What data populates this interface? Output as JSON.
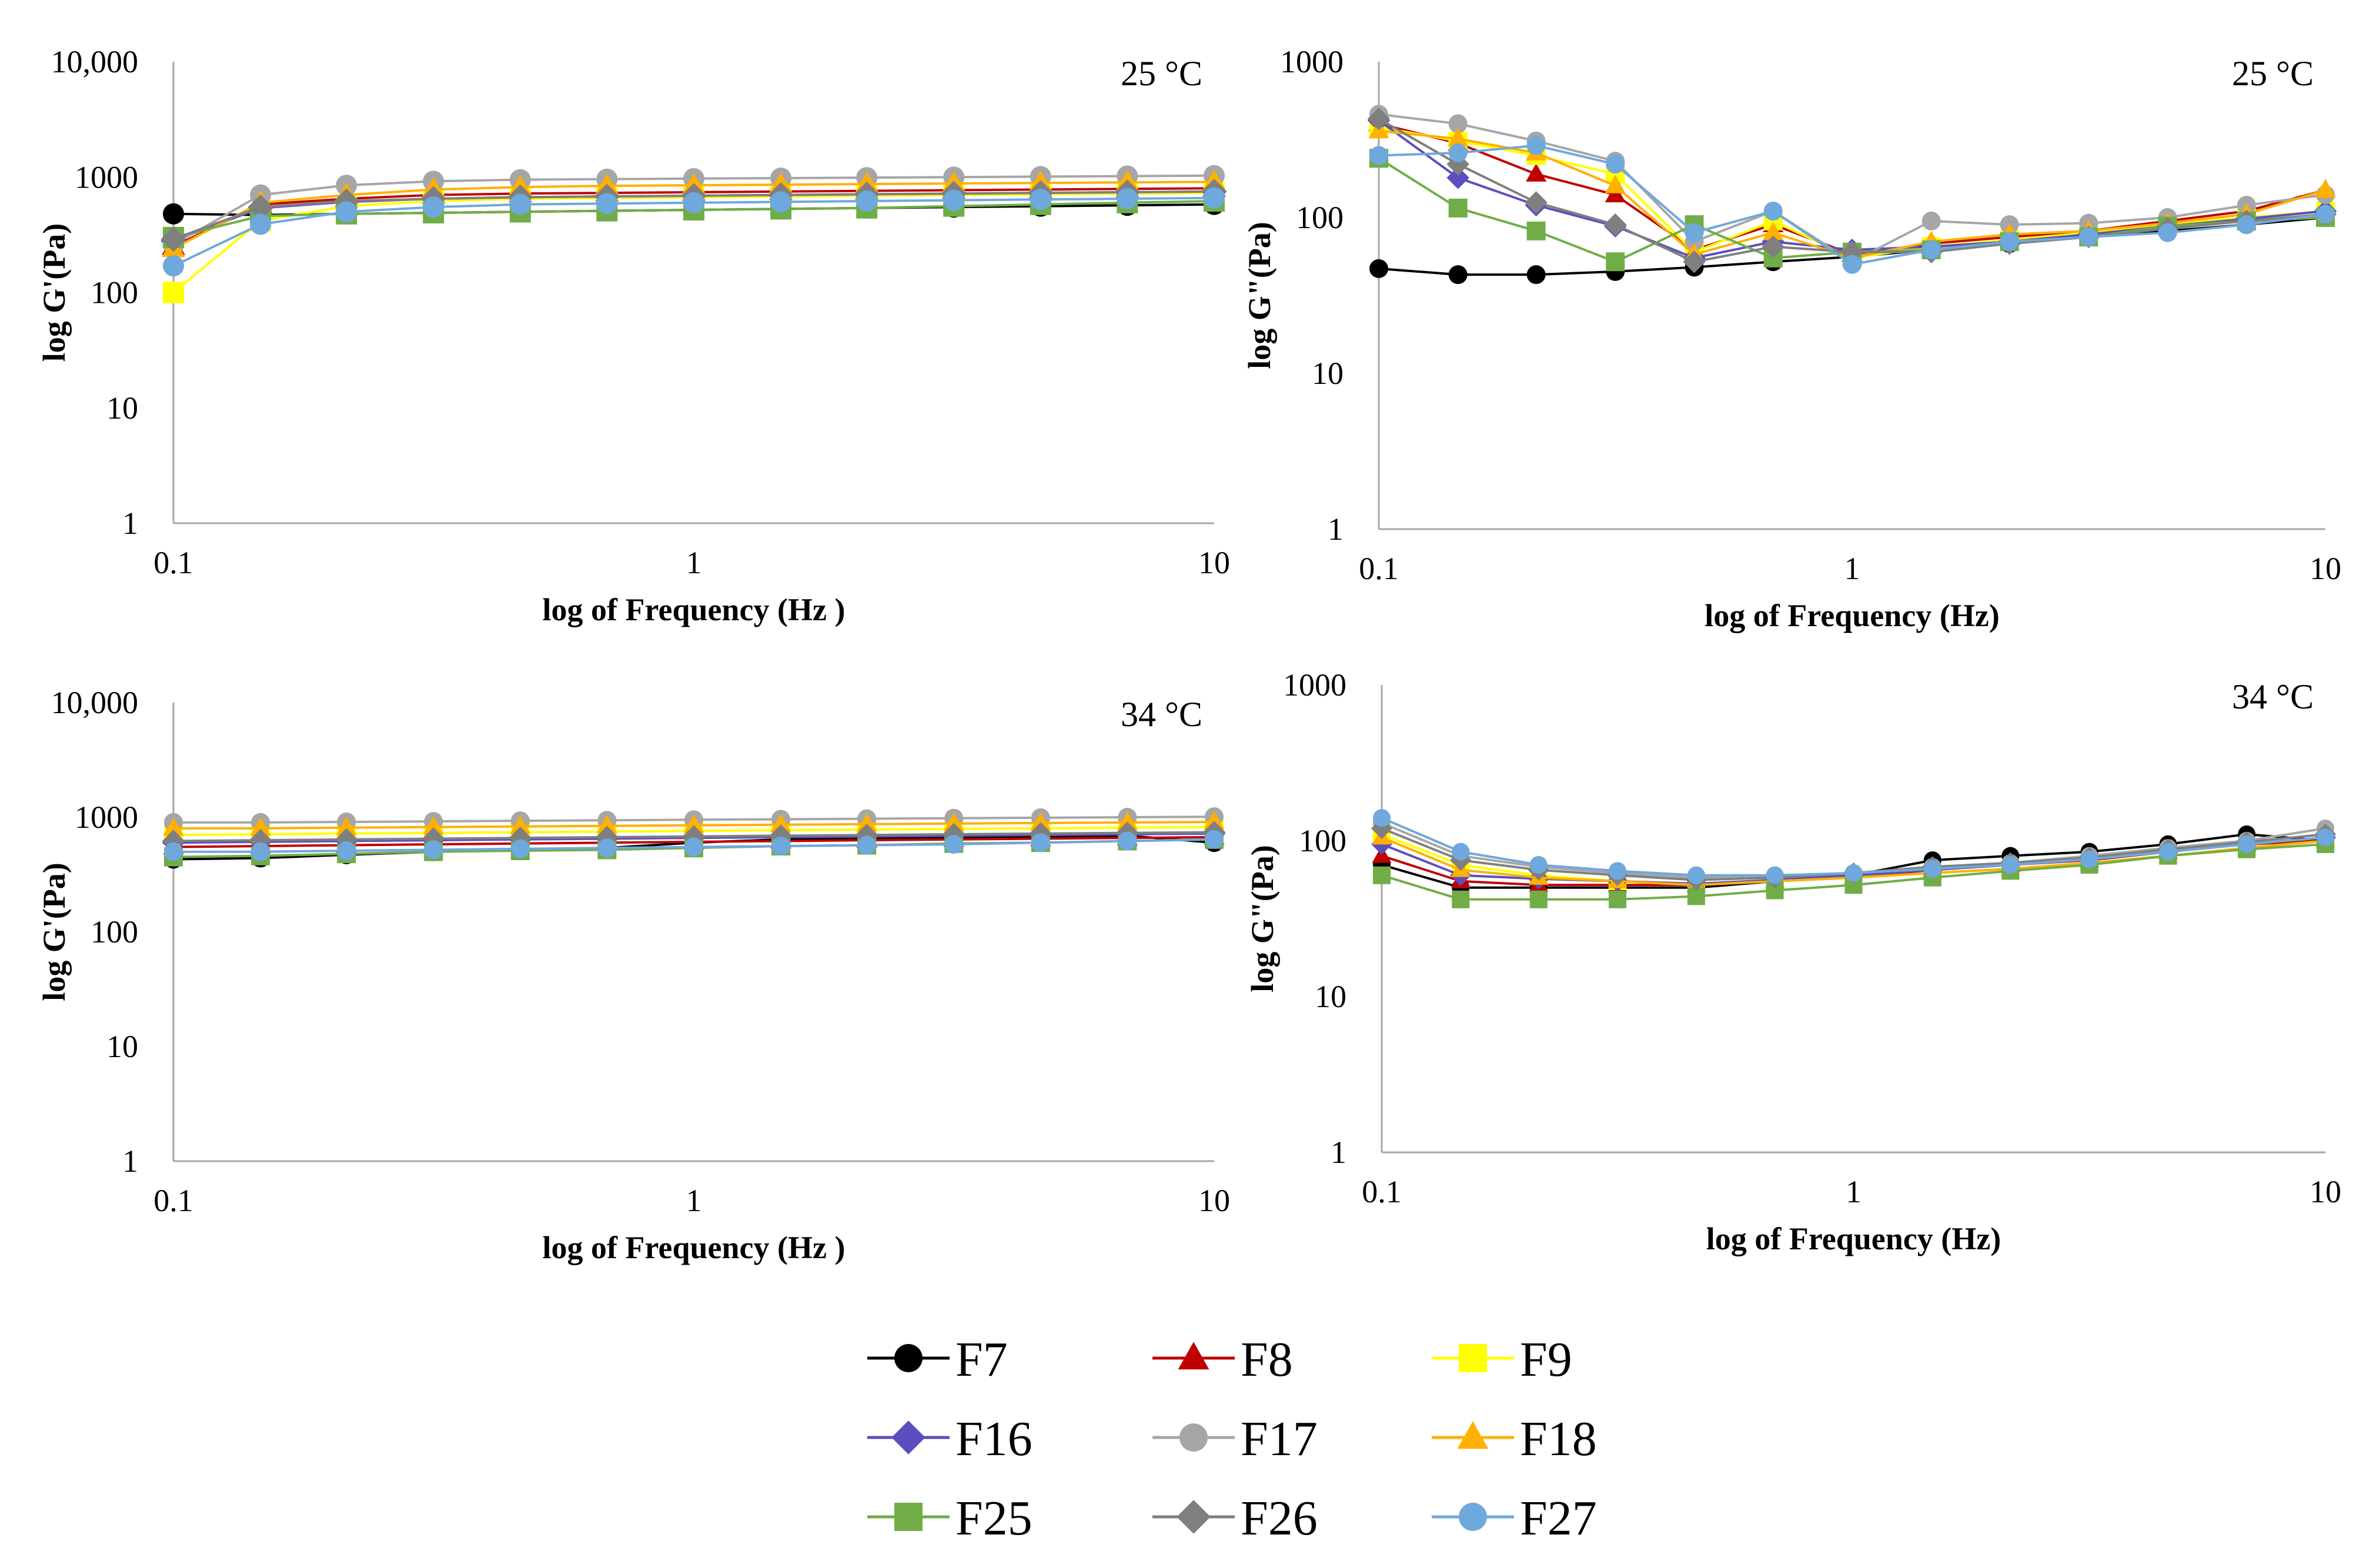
{
  "chart_data": [
    {
      "type": "line",
      "panel": "top-left",
      "temperature_label": "25 °C",
      "xlabel": "log  of Frequency (Hz )",
      "ylabel": "log G'(Pa)",
      "x_scale": "log",
      "y_scale": "log",
      "xlim": [
        0.1,
        10
      ],
      "ylim": [
        1,
        10000
      ],
      "x_ticks": [
        "0.1",
        "1",
        "10"
      ],
      "y_ticks": [
        "1",
        "10",
        "100",
        "1000",
        "10,000"
      ],
      "grid": false,
      "x": [
        0.1,
        0.147,
        0.215,
        0.316,
        0.464,
        0.681,
        1,
        1.47,
        2.15,
        3.16,
        4.64,
        6.81,
        10
      ],
      "series": [
        {
          "name": "F7",
          "values": [
            480,
            470,
            480,
            490,
            500,
            510,
            520,
            530,
            540,
            550,
            560,
            570,
            580
          ]
        },
        {
          "name": "F8",
          "values": [
            250,
            580,
            650,
            700,
            720,
            730,
            740,
            750,
            760,
            770,
            780,
            790,
            800
          ]
        },
        {
          "name": "F9",
          "values": [
            100,
            420,
            560,
            620,
            650,
            660,
            670,
            680,
            690,
            700,
            710,
            720,
            730
          ]
        },
        {
          "name": "F16",
          "values": [
            280,
            540,
            610,
            650,
            670,
            680,
            690,
            700,
            710,
            720,
            730,
            740,
            750
          ]
        },
        {
          "name": "F17",
          "values": [
            260,
            700,
            850,
            920,
            950,
            960,
            970,
            980,
            990,
            1000,
            1010,
            1020,
            1030
          ]
        },
        {
          "name": "F18",
          "values": [
            240,
            600,
            700,
            780,
            820,
            840,
            850,
            860,
            870,
            880,
            890,
            900,
            910
          ]
        },
        {
          "name": "F25",
          "values": [
            300,
            460,
            480,
            490,
            500,
            510,
            520,
            530,
            540,
            560,
            580,
            600,
            620
          ]
        },
        {
          "name": "F26",
          "values": [
            290,
            550,
            620,
            650,
            670,
            680,
            690,
            700,
            710,
            720,
            730,
            740,
            750
          ]
        },
        {
          "name": "F27",
          "values": [
            170,
            390,
            500,
            550,
            580,
            590,
            600,
            610,
            620,
            630,
            640,
            650,
            660
          ]
        }
      ]
    },
    {
      "type": "line",
      "panel": "top-right",
      "temperature_label": "25 °C",
      "xlabel": "log of Frequency (Hz)",
      "ylabel": "log G\"(Pa)",
      "x_scale": "log",
      "y_scale": "log",
      "xlim": [
        0.1,
        10
      ],
      "ylim": [
        1,
        1000
      ],
      "x_ticks": [
        "0.1",
        "1",
        "10"
      ],
      "y_ticks": [
        "1",
        "10",
        "100",
        "1000"
      ],
      "grid": false,
      "x": [
        0.1,
        0.147,
        0.215,
        0.316,
        0.464,
        0.681,
        1,
        1.47,
        2.15,
        3.16,
        4.64,
        6.81,
        10
      ],
      "series": [
        {
          "name": "F7",
          "values": [
            47,
            43,
            43,
            45,
            48,
            52,
            56,
            62,
            68,
            75,
            82,
            90,
            100
          ]
        },
        {
          "name": "F8",
          "values": [
            400,
            300,
            190,
            140,
            62,
            90,
            58,
            68,
            75,
            82,
            95,
            110,
            150
          ]
        },
        {
          "name": "F9",
          "values": [
            380,
            310,
            250,
            190,
            60,
            95,
            55,
            65,
            72,
            80,
            90,
            100,
            110
          ]
        },
        {
          "name": "F16",
          "values": [
            420,
            180,
            120,
            88,
            55,
            70,
            62,
            65,
            70,
            78,
            88,
            98,
            110
          ]
        },
        {
          "name": "F17",
          "values": [
            460,
            400,
            310,
            230,
            70,
            110,
            52,
            95,
            90,
            92,
            100,
            120,
            140
          ]
        },
        {
          "name": "F18",
          "values": [
            360,
            320,
            260,
            160,
            58,
            80,
            55,
            70,
            78,
            82,
            92,
            105,
            150
          ]
        },
        {
          "name": "F25",
          "values": [
            240,
            115,
            82,
            52,
            90,
            55,
            60,
            62,
            70,
            75,
            88,
            95,
            100
          ]
        },
        {
          "name": "F26",
          "values": [
            430,
            220,
            125,
            90,
            52,
            65,
            60,
            60,
            68,
            75,
            85,
            95,
            105
          ]
        },
        {
          "name": "F27",
          "values": [
            250,
            260,
            290,
            220,
            80,
            110,
            50,
            62,
            70,
            75,
            80,
            90,
            105
          ]
        }
      ]
    },
    {
      "type": "line",
      "panel": "bottom-left",
      "temperature_label": "34 °C",
      "xlabel": "log  of Frequency (Hz )",
      "ylabel": "log G'(Pa)",
      "x_scale": "log",
      "y_scale": "log",
      "xlim": [
        0.1,
        10
      ],
      "ylim": [
        1,
        10000
      ],
      "x_ticks": [
        "0.1",
        "1",
        "10"
      ],
      "y_ticks": [
        "1",
        "10",
        "100",
        "1000",
        "10,000"
      ],
      "grid": false,
      "x": [
        0.1,
        0.147,
        0.215,
        0.316,
        0.464,
        0.681,
        1,
        1.47,
        2.15,
        3.16,
        4.64,
        6.81,
        10
      ],
      "series": [
        {
          "name": "F7",
          "values": [
            430,
            440,
            470,
            500,
            520,
            540,
            600,
            640,
            660,
            670,
            680,
            690,
            600
          ]
        },
        {
          "name": "F8",
          "values": [
            550,
            560,
            570,
            580,
            590,
            600,
            610,
            620,
            630,
            640,
            650,
            660,
            670
          ]
        },
        {
          "name": "F9",
          "values": [
            700,
            710,
            720,
            730,
            740,
            750,
            760,
            770,
            780,
            790,
            800,
            810,
            820
          ]
        },
        {
          "name": "F16",
          "values": [
            600,
            610,
            620,
            630,
            640,
            650,
            660,
            670,
            680,
            690,
            700,
            710,
            720
          ]
        },
        {
          "name": "F17",
          "values": [
            900,
            900,
            910,
            920,
            930,
            940,
            950,
            960,
            970,
            980,
            990,
            1000,
            1010
          ]
        },
        {
          "name": "F18",
          "values": [
            800,
            800,
            810,
            820,
            830,
            840,
            850,
            860,
            870,
            880,
            890,
            900,
            910
          ]
        },
        {
          "name": "F25",
          "values": [
            450,
            460,
            480,
            500,
            510,
            520,
            540,
            560,
            570,
            590,
            600,
            620,
            640
          ]
        },
        {
          "name": "F26",
          "values": [
            620,
            630,
            640,
            650,
            660,
            670,
            680,
            690,
            700,
            710,
            720,
            730,
            740
          ]
        },
        {
          "name": "F27",
          "values": [
            500,
            500,
            510,
            520,
            530,
            540,
            550,
            560,
            570,
            580,
            600,
            620,
            640
          ]
        }
      ]
    },
    {
      "type": "line",
      "panel": "bottom-right",
      "temperature_label": "34 °C",
      "xlabel": "log of Frequency (Hz)",
      "ylabel": "log G\"(Pa)",
      "x_scale": "log",
      "y_scale": "log",
      "xlim": [
        0.1,
        10
      ],
      "ylim": [
        1,
        1000
      ],
      "x_ticks": [
        "0.1",
        "1",
        "10"
      ],
      "y_ticks": [
        "1",
        "10",
        "100",
        "1000"
      ],
      "grid": false,
      "x": [
        0.1,
        0.147,
        0.215,
        0.316,
        0.464,
        0.681,
        1,
        1.47,
        2.15,
        3.16,
        4.64,
        6.81,
        10
      ],
      "series": [
        {
          "name": "F7",
          "values": [
            70,
            50,
            50,
            50,
            50,
            55,
            60,
            75,
            80,
            85,
            95,
            110,
            100
          ]
        },
        {
          "name": "F8",
          "values": [
            80,
            55,
            52,
            52,
            52,
            55,
            58,
            65,
            70,
            75,
            85,
            95,
            100
          ]
        },
        {
          "name": "F9",
          "values": [
            110,
            70,
            60,
            55,
            52,
            55,
            58,
            62,
            66,
            72,
            80,
            90,
            100
          ]
        },
        {
          "name": "F16",
          "values": [
            95,
            60,
            57,
            55,
            53,
            56,
            60,
            65,
            70,
            76,
            85,
            95,
            105
          ]
        },
        {
          "name": "F17",
          "values": [
            130,
            80,
            68,
            62,
            58,
            60,
            62,
            68,
            72,
            80,
            90,
            100,
            120
          ]
        },
        {
          "name": "F18",
          "values": [
            105,
            65,
            58,
            55,
            52,
            55,
            58,
            62,
            66,
            72,
            80,
            90,
            100
          ]
        },
        {
          "name": "F25",
          "values": [
            60,
            42,
            42,
            42,
            44,
            48,
            52,
            58,
            64,
            70,
            80,
            88,
            95
          ]
        },
        {
          "name": "F26",
          "values": [
            120,
            75,
            65,
            60,
            56,
            58,
            62,
            68,
            72,
            78,
            88,
            98,
            110
          ]
        },
        {
          "name": "F27",
          "values": [
            140,
            85,
            70,
            64,
            60,
            60,
            62,
            66,
            70,
            76,
            85,
            95,
            105
          ]
        }
      ]
    }
  ],
  "legend": {
    "placement": "bottom-center",
    "items": [
      {
        "name": "F7",
        "color": "#000000",
        "marker": "circle",
        "data_name": "legend-item-f7"
      },
      {
        "name": "F8",
        "color": "#c00000",
        "marker": "triangle",
        "data_name": "legend-item-f8"
      },
      {
        "name": "F9",
        "color": "#ffff00",
        "marker": "square",
        "data_name": "legend-item-f9"
      },
      {
        "name": "F16",
        "color": "#5b4fbf",
        "marker": "diamond",
        "data_name": "legend-item-f16"
      },
      {
        "name": "F17",
        "color": "#a6a6a6",
        "marker": "circle",
        "data_name": "legend-item-f17"
      },
      {
        "name": "F18",
        "color": "#ffb000",
        "marker": "triangle",
        "data_name": "legend-item-f18"
      },
      {
        "name": "F25",
        "color": "#70ad47",
        "marker": "square",
        "data_name": "legend-item-f25"
      },
      {
        "name": "F26",
        "color": "#7f7f7f",
        "marker": "diamond",
        "data_name": "legend-item-f26"
      },
      {
        "name": "F27",
        "color": "#6fa8dc",
        "marker": "circle",
        "data_name": "legend-item-f27"
      }
    ]
  }
}
